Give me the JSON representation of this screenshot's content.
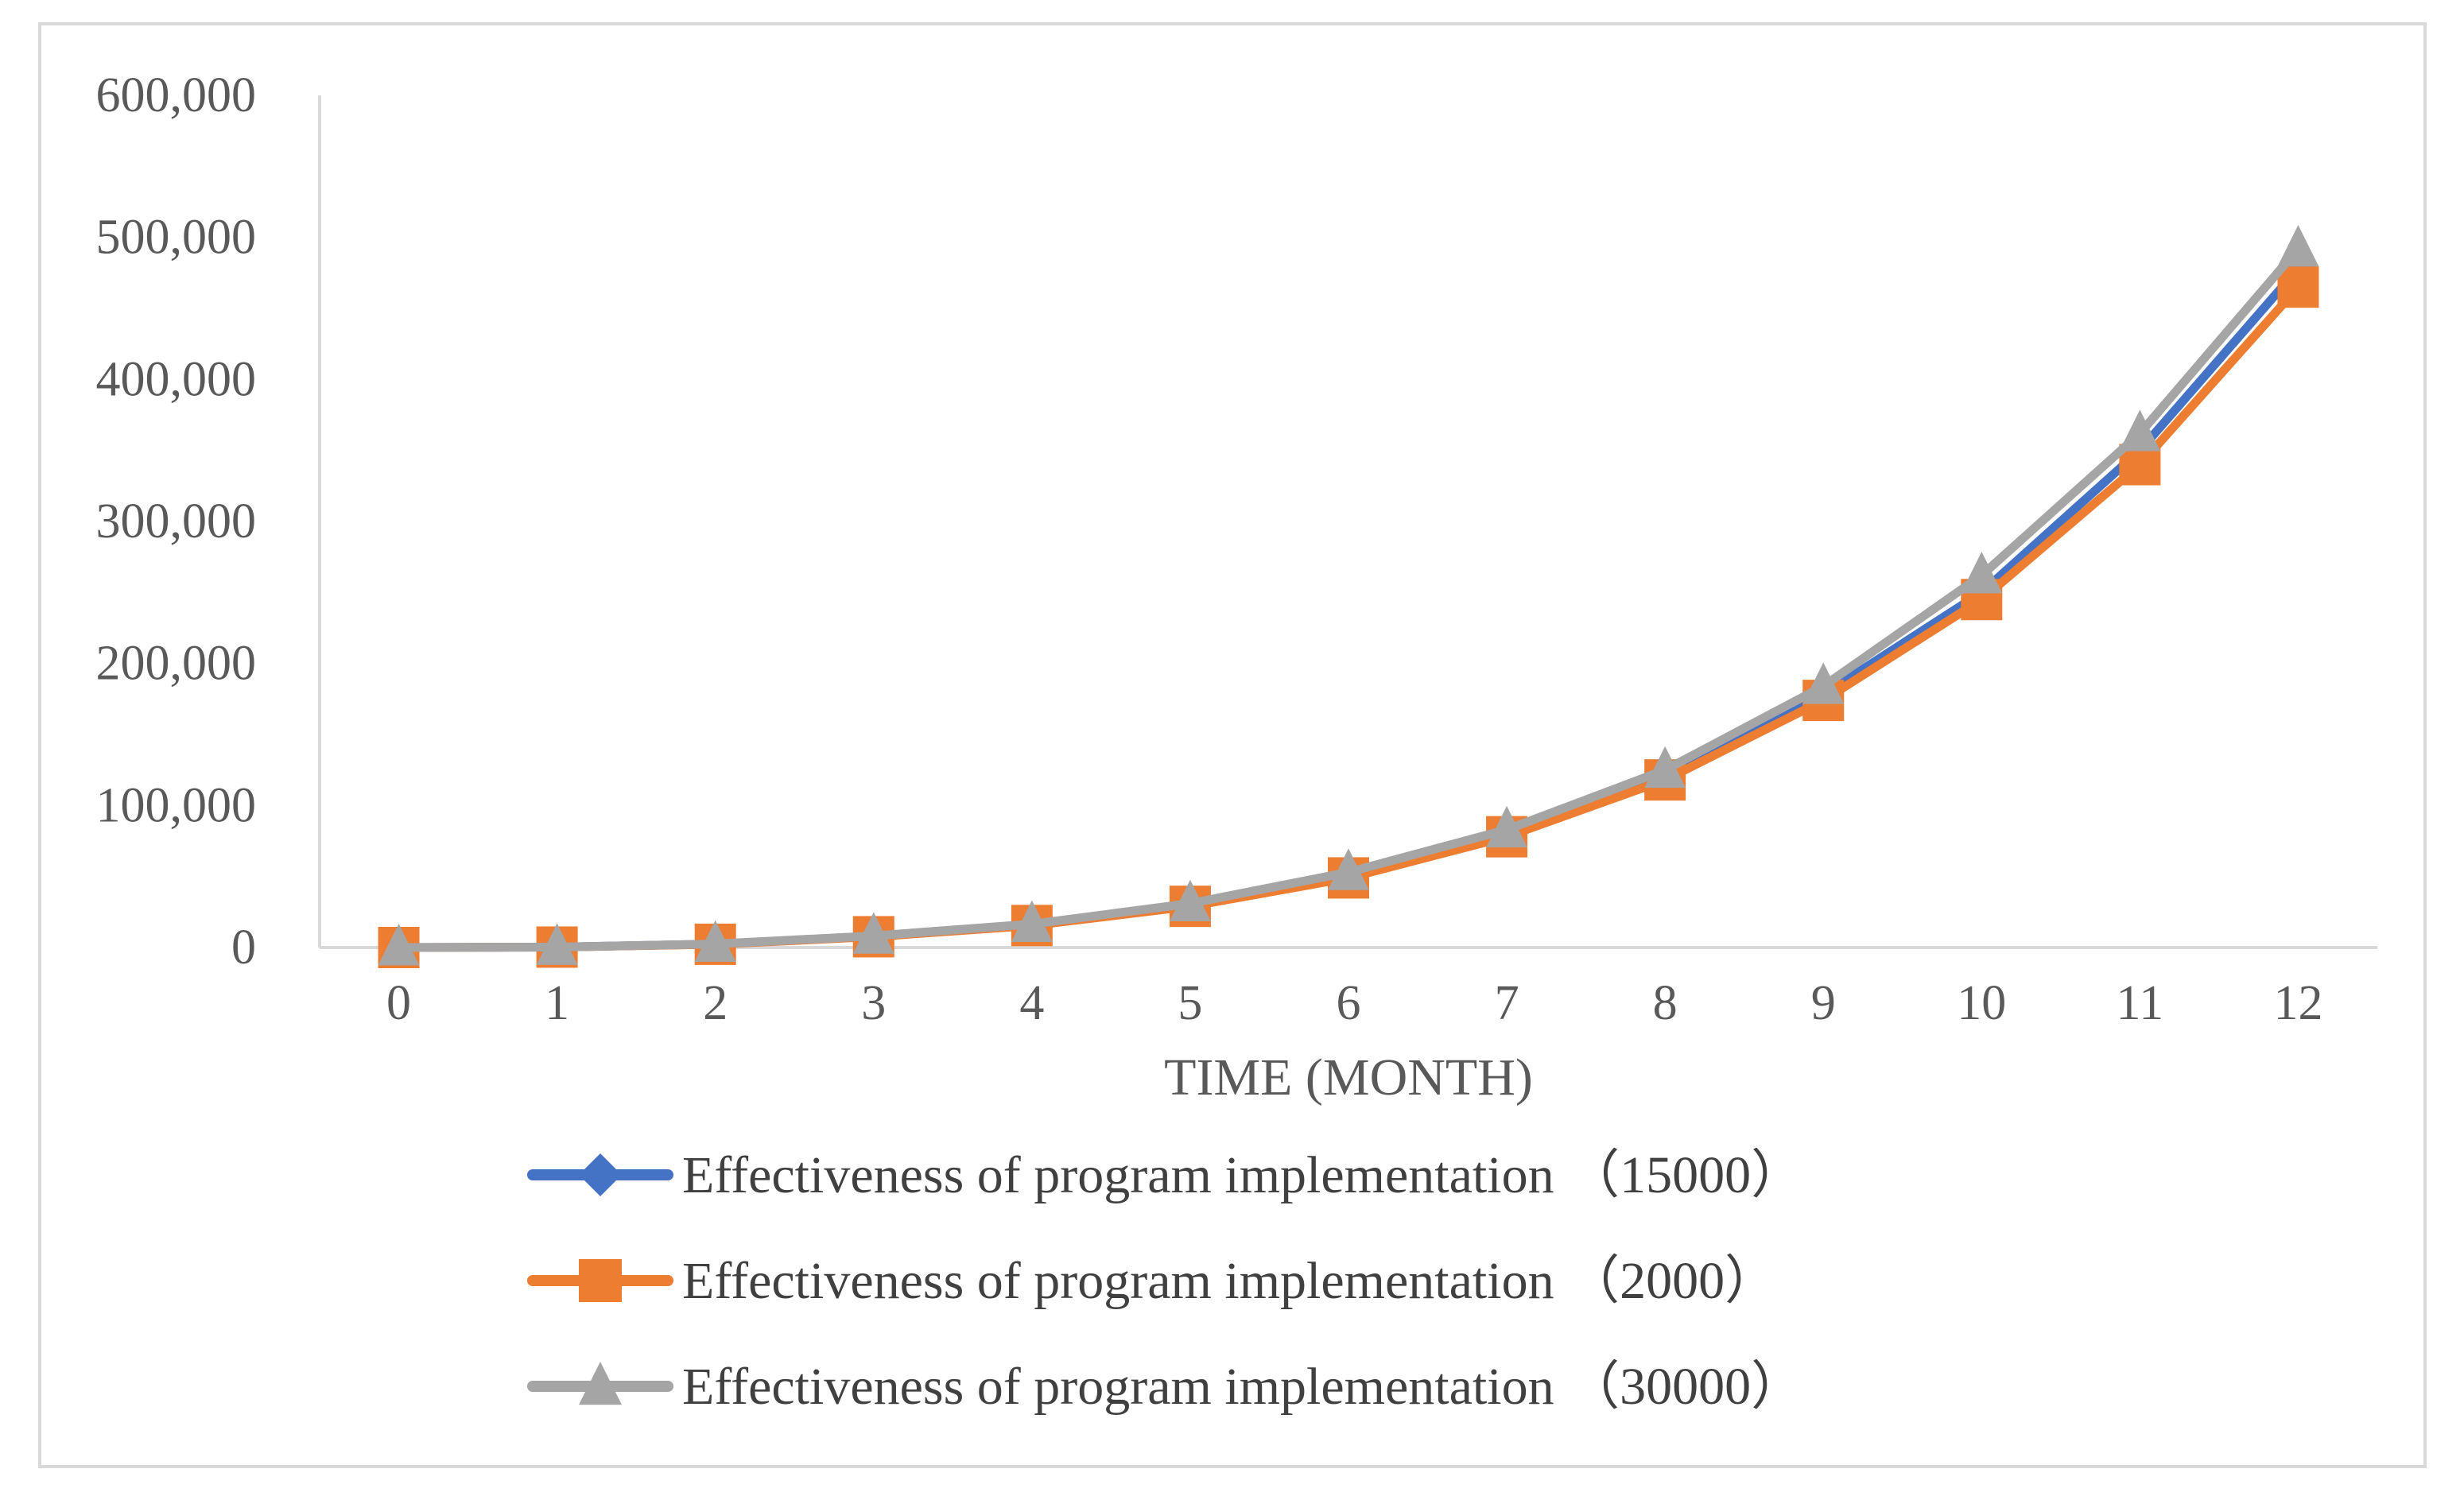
{
  "chart_data": {
    "type": "line",
    "title": "",
    "xlabel": "TIME (MONTH)",
    "ylabel": "",
    "categories": [
      "0",
      "1",
      "2",
      "3",
      "4",
      "5",
      "6",
      "7",
      "8",
      "9",
      "10",
      "11",
      "12"
    ],
    "y_tick_labels": [
      "0",
      "100,000",
      "200,000",
      "300,000",
      "400,000",
      "500,000",
      "600,000"
    ],
    "ylim": [
      0,
      600000
    ],
    "grid": false,
    "legend_position": "bottom",
    "series": [
      {
        "name": "Effectiveness of program implementation （15000）",
        "color": "#4472C4",
        "marker": "diamond",
        "values": [
          0,
          300,
          2400,
          7900,
          16000,
          30000,
          51000,
          80000,
          120000,
          178000,
          250000,
          350000,
          478000
        ]
      },
      {
        "name": "Effectiveness of program implementation （2000）",
        "color": "#ED7D31",
        "marker": "square",
        "values": [
          0,
          290,
          2300,
          7600,
          15500,
          29000,
          49000,
          78000,
          118000,
          174000,
          245000,
          340000,
          465000
        ]
      },
      {
        "name": "Effectiveness of program implementation （30000）",
        "color": "#A5A5A5",
        "marker": "triangle",
        "values": [
          0,
          310,
          2500,
          8200,
          16500,
          31000,
          53000,
          83000,
          125000,
          184000,
          262000,
          362000,
          492000
        ]
      }
    ]
  }
}
